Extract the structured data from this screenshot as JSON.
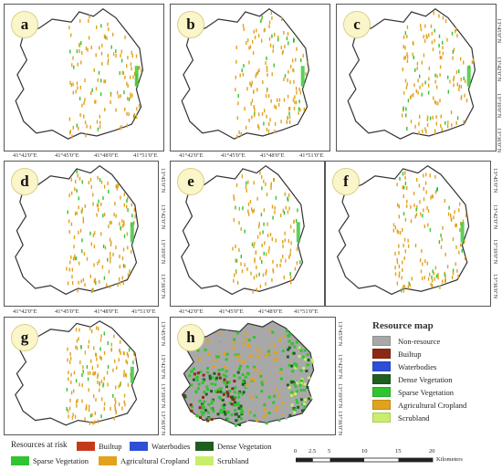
{
  "panels": [
    {
      "id": "a",
      "label": "a"
    },
    {
      "id": "b",
      "label": "b"
    },
    {
      "id": "c",
      "label": "c"
    },
    {
      "id": "d",
      "label": "d"
    },
    {
      "id": "e",
      "label": "e"
    },
    {
      "id": "f",
      "label": "f"
    },
    {
      "id": "g",
      "label": "g"
    },
    {
      "id": "h",
      "label": "h"
    }
  ],
  "longitude_ticks": [
    "41°42'0\"E",
    "41°45'0\"E",
    "41°48'0\"E",
    "41°51'0\"E"
  ],
  "latitude_ticks": [
    "13°45'0\"N",
    "13°42'0\"N",
    "13°39'0\"N",
    "13°36'0\"N"
  ],
  "resource_legend": {
    "title": "Resource map",
    "items": [
      {
        "label": "Non-resource",
        "color": "#a8a8a8"
      },
      {
        "label": "Builtup",
        "color": "#8b2a12"
      },
      {
        "label": "Waterbodies",
        "color": "#2d4fd6"
      },
      {
        "label": "Dense Vegetation",
        "color": "#1f5e1f"
      },
      {
        "label": "Sparse Vegetation",
        "color": "#2fc52f"
      },
      {
        "label": "Agricultural Cropland",
        "color": "#e2a21c"
      },
      {
        "label": "Scrubland",
        "color": "#c9ef6a"
      }
    ]
  },
  "risk_legend": {
    "title": "Resources at risk",
    "items": [
      {
        "label": "Builtup",
        "color": "#c63a1c"
      },
      {
        "label": "Waterbodies",
        "color": "#2d4fd6"
      },
      {
        "label": "Dense Vegetation",
        "color": "#1f5e1f"
      },
      {
        "label": "Sparse Vegetation",
        "color": "#2fc52f"
      },
      {
        "label": "Agricultural Cropland",
        "color": "#e2a21c"
      },
      {
        "label": "Scrubland",
        "color": "#c9ef6a"
      }
    ]
  },
  "scale_bar": {
    "ticks": [
      "0",
      "2.5",
      "5",
      "10",
      "15",
      "20"
    ],
    "unit": "Kilometers"
  }
}
